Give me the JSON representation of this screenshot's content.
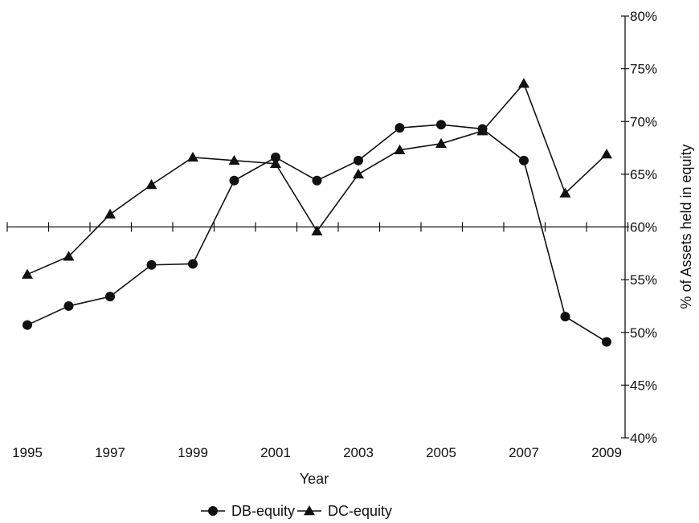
{
  "chart_data": {
    "type": "line",
    "xlabel": "Year",
    "ylabel": "% of Assets held in equity",
    "x": [
      1995,
      1996,
      1997,
      1998,
      1999,
      2000,
      2001,
      2002,
      2003,
      2004,
      2005,
      2006,
      2007,
      2008,
      2009
    ],
    "x_tick_labels": [
      "1995",
      "1997",
      "1999",
      "2001",
      "2003",
      "2005",
      "2007",
      "2009"
    ],
    "y_tick_labels": [
      "40%",
      "45%",
      "50%",
      "55%",
      "60%",
      "65%",
      "70%",
      "75%",
      "80%"
    ],
    "ylim": [
      40,
      80
    ],
    "y_axis_position": "right",
    "x_axis_crosses_at": 60,
    "legend_position": "bottom-center",
    "series": [
      {
        "name": "DB-equity",
        "marker": "circle",
        "values": [
          50.7,
          52.5,
          53.4,
          56.4,
          56.5,
          64.4,
          66.6,
          64.4,
          66.3,
          69.4,
          69.7,
          69.3,
          66.3,
          51.5,
          49.1
        ]
      },
      {
        "name": "DC-equity",
        "marker": "triangle",
        "values": [
          55.5,
          57.2,
          61.2,
          64.0,
          66.6,
          66.3,
          66.0,
          59.6,
          65.0,
          67.3,
          67.9,
          69.1,
          73.6,
          63.2,
          66.9
        ]
      }
    ]
  }
}
